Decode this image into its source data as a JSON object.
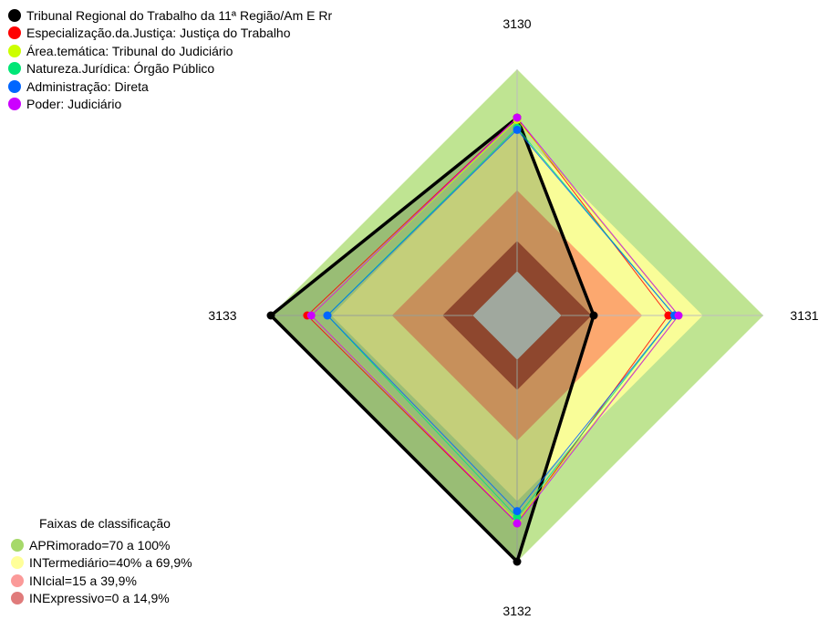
{
  "chart_data": {
    "type": "radar",
    "axes": [
      "3130",
      "3131",
      "3132",
      "3133"
    ],
    "range": [
      0,
      100
    ],
    "title": "",
    "bands_title": "Faixas de classificação",
    "bands": [
      {
        "label": "APRimorado=70 a 100%",
        "from": 70,
        "to": 100,
        "color": "#b8e186",
        "legend_color": "#a6d96a"
      },
      {
        "label": "INTermediário=40% a 69,9%",
        "from": 40,
        "to": 70,
        "color": "#ffff99",
        "legend_color": "#ffff99"
      },
      {
        "label": "INIcial=15 a 39,9%",
        "from": 15,
        "to": 40,
        "color": "#fc9f6a",
        "legend_color": "#fb9a99"
      },
      {
        "label": "INExpressivo=0 a 14,9%",
        "from": 0,
        "to": 15,
        "color": "#a83c2c",
        "legend_color": "#e07b7b"
      }
    ],
    "series": [
      {
        "name": "Tribunal Regional do Trabalho da 11ª Região/Am E Rr",
        "color": "#000000",
        "values": [
          76,
          16,
          100,
          100
        ]
      },
      {
        "name": "Especialização.da.Justiça: Justiça do Trabalho",
        "color": "#ff0000",
        "values": [
          76,
          53,
          81,
          82
        ]
      },
      {
        "name": "Área.temática: Tribunal do Judiciário",
        "color": "#ccff00",
        "values": [
          75,
          58,
          80,
          80
        ]
      },
      {
        "name": "Natureza.Jurídica: Órgão Público",
        "color": "#00e676",
        "values": [
          71,
          56,
          78,
          72
        ]
      },
      {
        "name": "Administração: Direta",
        "color": "#0066ff",
        "values": [
          70,
          56,
          75,
          72
        ]
      },
      {
        "name": "Poder: Judiciário",
        "color": "#cc00ff",
        "values": [
          76,
          58,
          81,
          80
        ]
      }
    ]
  }
}
